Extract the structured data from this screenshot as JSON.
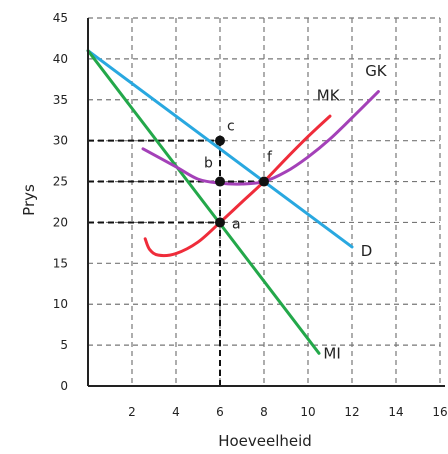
{
  "chart_data": {
    "type": "line",
    "xlabel": "Hoeveelheid",
    "ylabel": "Prys",
    "xlim": [
      0,
      16
    ],
    "ylim": [
      0,
      45
    ],
    "x_ticks": [
      "2",
      "4",
      "6",
      "8",
      "10",
      "12",
      "14",
      "16"
    ],
    "y_ticks": [
      "0",
      "5",
      "10",
      "15",
      "20",
      "25",
      "30",
      "35",
      "40",
      "45"
    ],
    "grid": true,
    "series": [
      {
        "name": "D",
        "color": "#29a8e0",
        "points": [
          [
            0,
            41
          ],
          [
            12,
            17
          ]
        ]
      },
      {
        "name": "MI",
        "color": "#23a84a",
        "points": [
          [
            0,
            41
          ],
          [
            10.5,
            4
          ]
        ]
      },
      {
        "name": "MK",
        "color": "#ef2c3a",
        "points": [
          [
            2.6,
            18
          ],
          [
            2.8,
            16.7
          ],
          [
            3.2,
            16
          ],
          [
            4,
            16.2
          ],
          [
            5,
            17.6
          ],
          [
            6,
            20
          ],
          [
            7,
            22.5
          ],
          [
            8,
            25
          ],
          [
            9,
            27.8
          ],
          [
            10,
            30.5
          ],
          [
            11,
            33
          ]
        ]
      },
      {
        "name": "GK",
        "color": "#a441b8",
        "points": [
          [
            2.5,
            29
          ],
          [
            4,
            26.8
          ],
          [
            5,
            25.3
          ],
          [
            6,
            24.8
          ],
          [
            7,
            24.7
          ],
          [
            8,
            25
          ],
          [
            9,
            26.2
          ],
          [
            10,
            28
          ],
          [
            11,
            30.2
          ],
          [
            12,
            32.8
          ],
          [
            13.2,
            36
          ]
        ]
      }
    ],
    "points": [
      {
        "label": "c",
        "x": 6,
        "y": 30
      },
      {
        "label": "b",
        "x": 6,
        "y": 25
      },
      {
        "label": "f",
        "x": 8,
        "y": 25
      },
      {
        "label": "a",
        "x": 6,
        "y": 20
      }
    ],
    "guides": [
      {
        "from": [
          0,
          30
        ],
        "to": [
          6,
          30
        ]
      },
      {
        "from": [
          0,
          25
        ],
        "to": [
          8,
          25
        ]
      },
      {
        "from": [
          0,
          20
        ],
        "to": [
          6,
          20
        ]
      },
      {
        "from": [
          6,
          0
        ],
        "to": [
          6,
          30
        ]
      }
    ]
  }
}
